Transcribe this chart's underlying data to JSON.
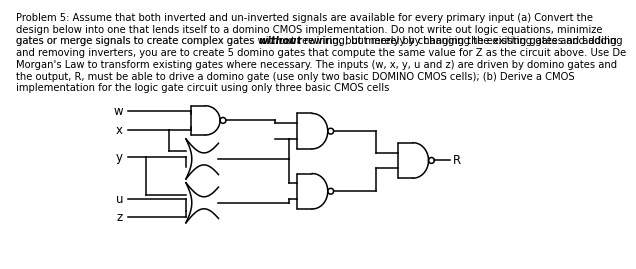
{
  "bg_color": "#ffffff",
  "line_color": "#000000",
  "text_color": "#000000",
  "font_size_body": 7.2,
  "font_size_label": 8.5,
  "line1": "Problem 5: Assume that both inverted and un-inverted signals are available for every primary input (a) Convert the",
  "line2": "design below into one that lends itself to a domino CMOS implementation. Do not write out logic equations, minimize",
  "line3a": "gates or merge signals to create complex gates ",
  "line3b": "without",
  "line3c": " rewiring, but merely by changing the existing gates and adding",
  "line4": "and removing inverters, you are to create 5 domino gates that compute the same value for Z as the circuit above. Use De",
  "line5": "Morgan's Law to transform existing gates where necessary. The inputs (w, x, y, u and z) are driven by domino gates and",
  "line6": "the output, R, must be able to drive a domino gate (use only two basic DOMINO CMOS cells); (b) Derive a CMOS",
  "line7": "implementation for the logic gate circuit using only three basic CMOS cells",
  "inputs": [
    "w",
    "x",
    "y",
    "u",
    "z"
  ],
  "output": "R",
  "lw": 1.1
}
